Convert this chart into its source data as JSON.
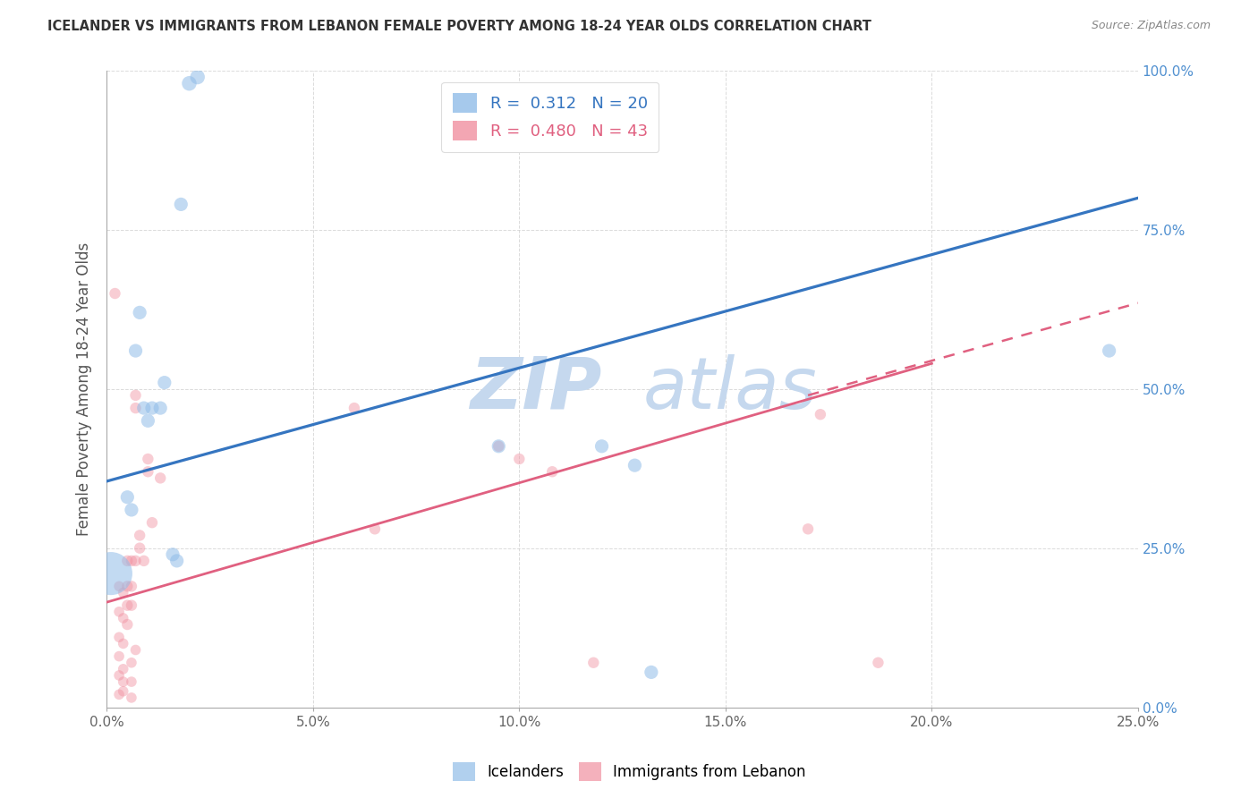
{
  "title": "ICELANDER VS IMMIGRANTS FROM LEBANON FEMALE POVERTY AMONG 18-24 YEAR OLDS CORRELATION CHART",
  "source": "Source: ZipAtlas.com",
  "ylabel": "Female Poverty Among 18-24 Year Olds",
  "xlim": [
    0.0,
    0.25
  ],
  "ylim": [
    0.0,
    1.0
  ],
  "xticks": [
    0.0,
    0.05,
    0.1,
    0.15,
    0.2,
    0.25
  ],
  "yticks": [
    0.0,
    0.25,
    0.5,
    0.75,
    1.0
  ],
  "xticklabels": [
    "0.0%",
    "5.0%",
    "10.0%",
    "15.0%",
    "20.0%",
    "25.0%"
  ],
  "yticklabels_right": [
    "0.0%",
    "25.0%",
    "50.0%",
    "75.0%",
    "100.0%"
  ],
  "background_color": "#ffffff",
  "grid_color": "#cccccc",
  "icelander_color": "#90bce8",
  "lebanon_color": "#f090a0",
  "icelander_R": 0.312,
  "icelander_N": 20,
  "lebanon_R": 0.48,
  "lebanon_N": 43,
  "icelander_points": [
    [
      0.001,
      0.21,
      1200
    ],
    [
      0.005,
      0.33,
      120
    ],
    [
      0.006,
      0.31,
      120
    ],
    [
      0.007,
      0.56,
      120
    ],
    [
      0.008,
      0.62,
      120
    ],
    [
      0.009,
      0.47,
      120
    ],
    [
      0.01,
      0.45,
      120
    ],
    [
      0.011,
      0.47,
      120
    ],
    [
      0.013,
      0.47,
      120
    ],
    [
      0.014,
      0.51,
      120
    ],
    [
      0.016,
      0.24,
      120
    ],
    [
      0.017,
      0.23,
      120
    ],
    [
      0.018,
      0.79,
      120
    ],
    [
      0.02,
      0.98,
      140
    ],
    [
      0.022,
      0.99,
      140
    ],
    [
      0.095,
      0.41,
      120
    ],
    [
      0.12,
      0.41,
      120
    ],
    [
      0.128,
      0.38,
      120
    ],
    [
      0.132,
      0.055,
      120
    ],
    [
      0.243,
      0.56,
      120
    ]
  ],
  "lebanon_points": [
    [
      0.002,
      0.65,
      80
    ],
    [
      0.003,
      0.19,
      70
    ],
    [
      0.003,
      0.15,
      70
    ],
    [
      0.003,
      0.11,
      70
    ],
    [
      0.003,
      0.08,
      70
    ],
    [
      0.003,
      0.05,
      70
    ],
    [
      0.003,
      0.02,
      70
    ],
    [
      0.004,
      0.18,
      70
    ],
    [
      0.004,
      0.14,
      70
    ],
    [
      0.004,
      0.1,
      70
    ],
    [
      0.004,
      0.06,
      70
    ],
    [
      0.004,
      0.04,
      70
    ],
    [
      0.004,
      0.025,
      70
    ],
    [
      0.005,
      0.23,
      80
    ],
    [
      0.005,
      0.19,
      80
    ],
    [
      0.005,
      0.16,
      80
    ],
    [
      0.005,
      0.13,
      80
    ],
    [
      0.006,
      0.23,
      80
    ],
    [
      0.006,
      0.19,
      80
    ],
    [
      0.006,
      0.16,
      80
    ],
    [
      0.006,
      0.07,
      70
    ],
    [
      0.006,
      0.04,
      70
    ],
    [
      0.006,
      0.015,
      70
    ],
    [
      0.007,
      0.49,
      80
    ],
    [
      0.007,
      0.47,
      80
    ],
    [
      0.007,
      0.23,
      80
    ],
    [
      0.007,
      0.09,
      70
    ],
    [
      0.008,
      0.27,
      80
    ],
    [
      0.008,
      0.25,
      80
    ],
    [
      0.009,
      0.23,
      80
    ],
    [
      0.01,
      0.39,
      80
    ],
    [
      0.01,
      0.37,
      80
    ],
    [
      0.011,
      0.29,
      80
    ],
    [
      0.013,
      0.36,
      80
    ],
    [
      0.06,
      0.47,
      80
    ],
    [
      0.065,
      0.28,
      80
    ],
    [
      0.095,
      0.41,
      80
    ],
    [
      0.1,
      0.39,
      80
    ],
    [
      0.108,
      0.37,
      80
    ],
    [
      0.118,
      0.07,
      80
    ],
    [
      0.17,
      0.28,
      80
    ],
    [
      0.173,
      0.46,
      80
    ],
    [
      0.187,
      0.07,
      80
    ]
  ],
  "icelander_line": {
    "x0": 0.0,
    "y0": 0.355,
    "x1": 0.25,
    "y1": 0.8
  },
  "lebanon_line_solid": {
    "x0": 0.0,
    "y0": 0.165,
    "x1": 0.2,
    "y1": 0.54
  },
  "lebanon_line_dashed": {
    "x0": 0.17,
    "y0": 0.49,
    "x1": 0.25,
    "y1": 0.635
  },
  "watermark_zip": "ZIP",
  "watermark_atlas": "atlas",
  "watermark_color": "#c5d8ee",
  "watermark_fontsize": 58
}
